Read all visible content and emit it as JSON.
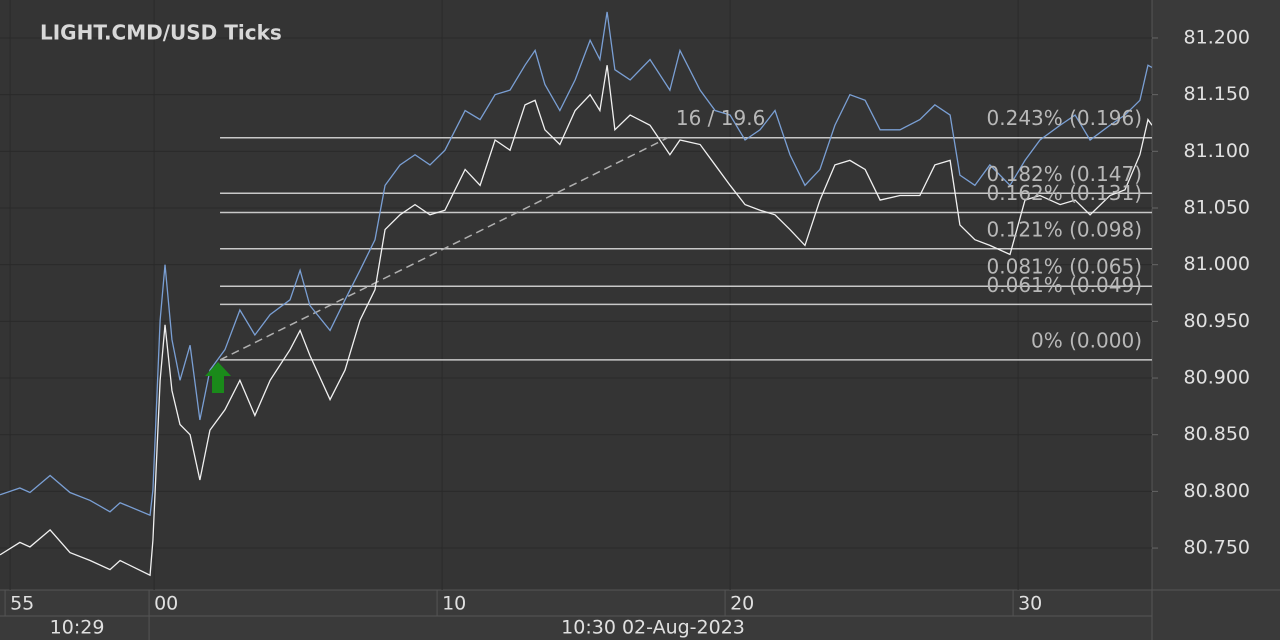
{
  "chart_data": {
    "type": "line",
    "title": "LIGHT.CMD/USD  Ticks",
    "x": [
      54.65,
      55.34,
      55.69,
      56.39,
      57.08,
      57.78,
      58.47,
      58.82,
      59.86,
      59.96,
      60.21,
      60.38,
      60.62,
      60.9,
      61.25,
      61.59,
      61.94,
      62.46,
      62.98,
      63.5,
      64.03,
      64.72,
      65.07,
      65.41,
      66.11,
      66.63,
      67.15,
      67.67,
      68.02,
      68.54,
      69.06,
      69.58,
      70.1,
      70.8,
      71.32,
      71.84,
      72.36,
      72.88,
      73.23,
      73.57,
      74.09,
      74.62,
      75.14,
      75.48,
      75.73,
      76.0,
      76.53,
      77.22,
      77.91,
      78.26,
      78.96,
      79.48,
      80.0,
      80.52,
      81.04,
      81.56,
      82.08,
      82.6,
      83.12,
      83.64,
      84.16,
      84.69,
      85.21,
      85.9,
      86.59,
      87.11,
      87.64,
      87.98,
      88.5,
      89.02,
      89.72,
      90.24,
      90.76,
      91.46,
      91.98,
      92.5,
      93.19,
      93.71,
      94.23,
      94.51,
      94.65
    ],
    "series": [
      {
        "color": "#7a9fd4",
        "values": [
          80.797,
          80.803,
          80.799,
          80.814,
          80.799,
          80.792,
          80.782,
          80.79,
          80.779,
          80.801,
          80.951,
          81.0,
          80.934,
          80.898,
          80.929,
          80.863,
          80.907,
          80.925,
          80.96,
          80.938,
          80.956,
          80.969,
          80.995,
          80.964,
          80.942,
          80.969,
          80.995,
          81.022,
          81.07,
          81.088,
          81.097,
          81.088,
          81.101,
          81.136,
          81.128,
          81.15,
          81.154,
          81.176,
          81.189,
          81.159,
          81.136,
          81.163,
          81.198,
          81.181,
          81.223,
          81.172,
          81.163,
          81.181,
          81.154,
          81.189,
          81.154,
          81.136,
          81.132,
          81.11,
          81.119,
          81.136,
          81.097,
          81.07,
          81.084,
          81.123,
          81.15,
          81.145,
          81.119,
          81.119,
          81.128,
          81.141,
          81.132,
          81.079,
          81.07,
          81.088,
          81.07,
          81.092,
          81.11,
          81.123,
          81.132,
          81.11,
          81.123,
          81.132,
          81.145,
          81.176,
          81.174
        ]
      },
      {
        "color": "#f0f0f0",
        "values": [
          80.744,
          80.755,
          80.751,
          80.766,
          80.746,
          80.739,
          80.731,
          80.739,
          80.726,
          80.757,
          80.898,
          80.947,
          80.889,
          80.859,
          80.85,
          80.81,
          80.854,
          80.872,
          80.898,
          80.867,
          80.898,
          80.925,
          80.942,
          80.92,
          80.881,
          80.907,
          80.951,
          80.978,
          81.031,
          81.044,
          81.053,
          81.044,
          81.048,
          81.084,
          81.07,
          81.11,
          81.101,
          81.141,
          81.145,
          81.119,
          81.106,
          81.136,
          81.15,
          81.136,
          81.176,
          81.119,
          81.132,
          81.123,
          81.097,
          81.11,
          81.106,
          81.088,
          81.07,
          81.053,
          81.048,
          81.044,
          81.031,
          81.017,
          81.057,
          81.088,
          81.092,
          81.084,
          81.057,
          81.061,
          81.061,
          81.088,
          81.092,
          81.035,
          81.022,
          81.017,
          81.009,
          81.057,
          81.061,
          81.053,
          81.057,
          81.044,
          81.061,
          81.066,
          81.097,
          81.128,
          81.123
        ]
      }
    ],
    "xlim": [
      54.65,
      94.65
    ],
    "xticks": [
      55,
      {
        "value": 60,
        "label": "00"
      },
      {
        "value": 70,
        "label": "10"
      },
      {
        "value": 80,
        "label": "20"
      },
      {
        "value": 90,
        "label": "30"
      }
    ],
    "time_labels": [
      "10:29",
      "10:30 02-Aug-2023"
    ],
    "ylim": [
      80.713,
      81.2335
    ],
    "yticks": [
      {
        "value": 80.75,
        "label": "80.750"
      },
      {
        "value": 80.8,
        "label": "80.800"
      },
      {
        "value": 80.85,
        "label": "80.850"
      },
      {
        "value": 80.9,
        "label": "80.900"
      },
      {
        "value": 80.95,
        "label": "80.950"
      },
      {
        "value": 81.0,
        "label": "81.000"
      },
      {
        "value": 81.05,
        "label": "81.050"
      },
      {
        "value": 81.1,
        "label": "81.100"
      },
      {
        "value": 81.15,
        "label": "81.150"
      },
      {
        "value": 81.2,
        "label": "81.200"
      }
    ],
    "grid": true,
    "levels": [
      {
        "value": 81.112,
        "label": "0.243% (0.196)"
      },
      {
        "value": 81.063,
        "label": "0.182% (0.147)"
      },
      {
        "value": 81.046,
        "label": "0.162% (0.131)"
      },
      {
        "value": 81.014,
        "label": "0.121% (0.098)"
      },
      {
        "value": 80.981,
        "label": "0.081% (0.065)"
      },
      {
        "value": 80.965,
        "label": "0.061% (0.049)"
      },
      {
        "value": 80.916,
        "label": "0% (0.000)"
      }
    ],
    "trendline": {
      "x": [
        62.29,
        77.84
      ],
      "y": [
        80.916,
        81.112
      ],
      "label": "16 / 19.6"
    },
    "buy_marker": {
      "x": 62.22,
      "y": 80.9,
      "color": "#1a8a1a"
    }
  }
}
